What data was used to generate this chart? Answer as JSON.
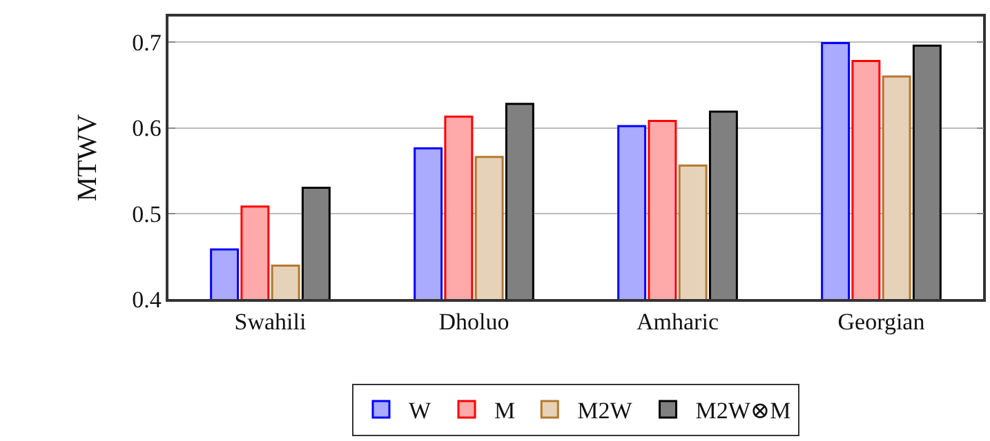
{
  "chart_data": {
    "type": "bar",
    "ylabel": "MTWV",
    "categories": [
      "Swahili",
      "Dholuo",
      "Amharic",
      "Georgian"
    ],
    "series": [
      {
        "name": "W",
        "color": "#aaaaff",
        "values": [
          0.458,
          0.576,
          0.602,
          0.699
        ]
      },
      {
        "name": "M",
        "color": "#ffaaaa",
        "values": [
          0.508,
          0.613,
          0.608,
          0.678
        ]
      },
      {
        "name": "M2W",
        "color": "#e6d2b9",
        "values": [
          0.439,
          0.566,
          0.556,
          0.66
        ]
      },
      {
        "name": "M2W⊗M",
        "color": "#808080",
        "values": [
          0.53,
          0.628,
          0.619,
          0.696
        ]
      }
    ],
    "ylim": [
      0.4,
      0.73
    ],
    "yticks": [
      0.4,
      0.5,
      0.6,
      0.7
    ],
    "grid": "y",
    "legend": "bottom"
  }
}
